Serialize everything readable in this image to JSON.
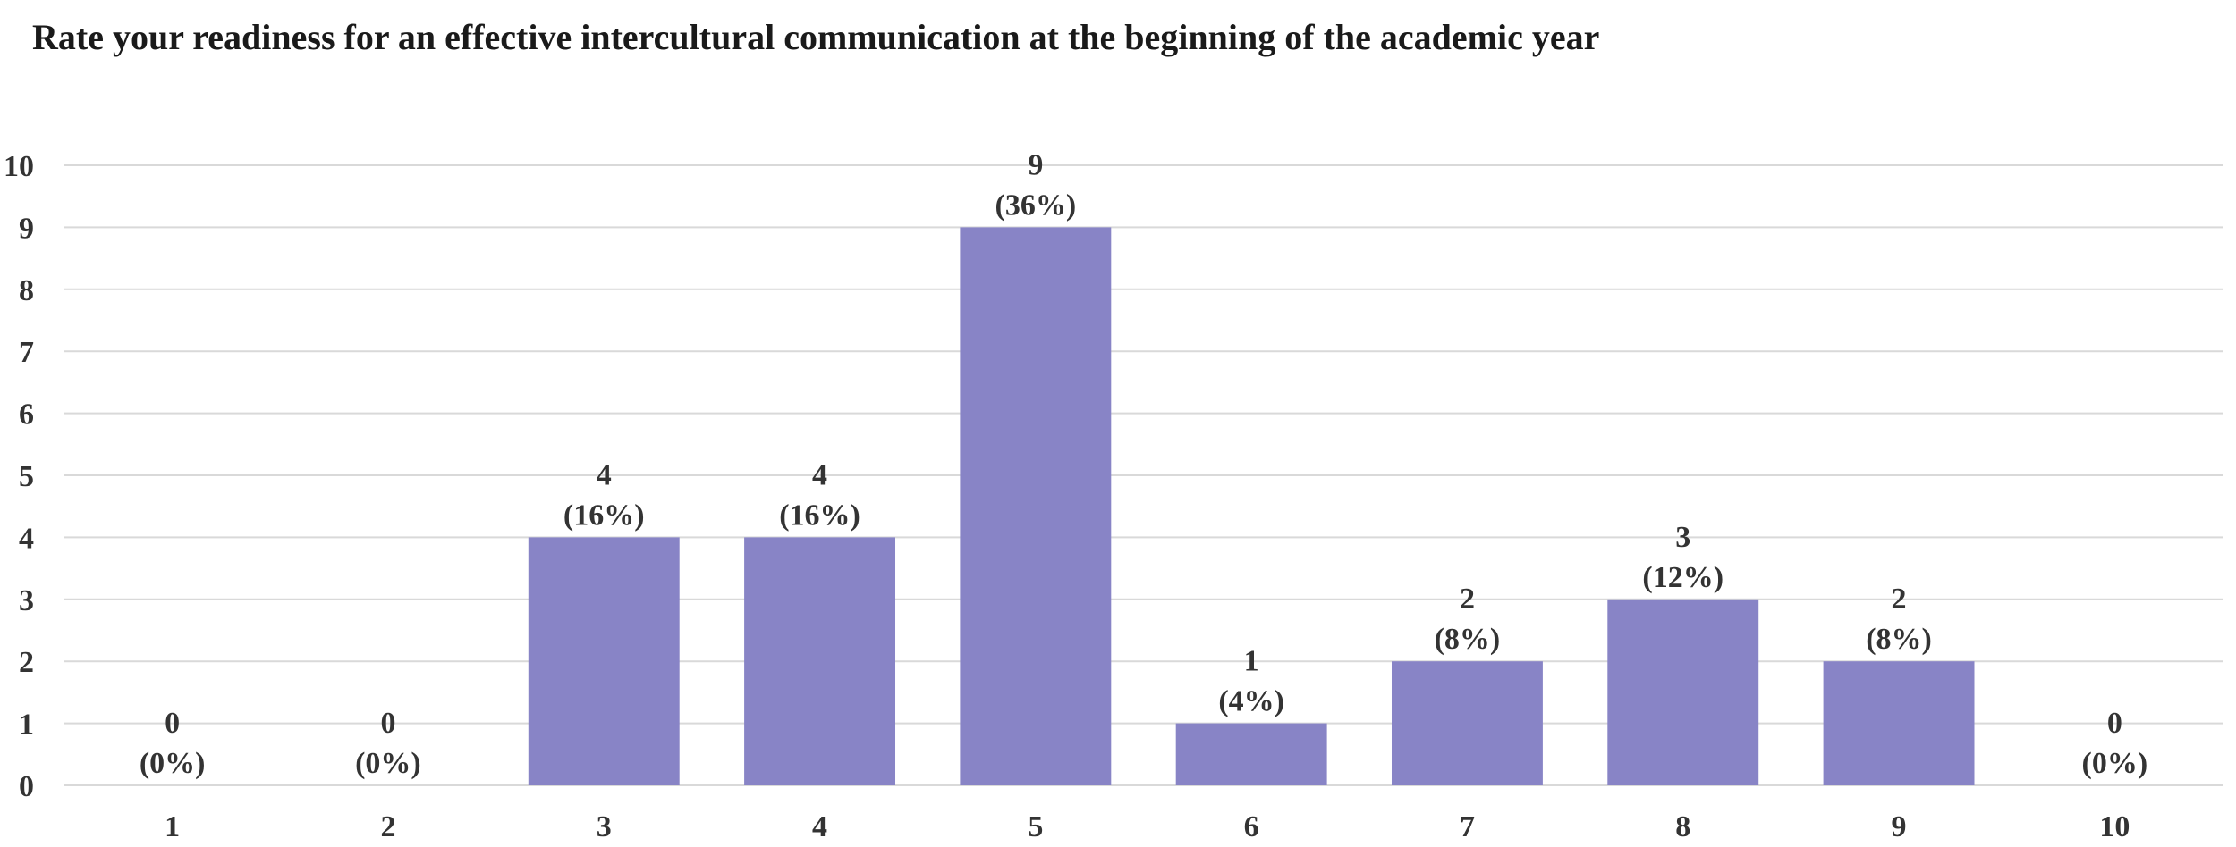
{
  "chart_data": {
    "type": "bar",
    "title": "Rate your readiness for an effective intercultural communication at the beginning of the academic year",
    "xlabel": "",
    "ylabel": "",
    "categories": [
      "1",
      "2",
      "3",
      "4",
      "5",
      "6",
      "7",
      "8",
      "9",
      "10"
    ],
    "values": [
      0,
      0,
      4,
      4,
      9,
      1,
      2,
      3,
      2,
      0
    ],
    "data_labels": [
      "(0%)",
      "(0%)",
      "(16%)",
      "(16%)",
      "(36%)",
      "(4%)",
      "(8%)",
      "(12%)",
      "(8%)",
      "(0%)"
    ],
    "ylim": [
      0,
      10
    ],
    "yticks": [
      0,
      1,
      2,
      3,
      4,
      5,
      6,
      7,
      8,
      9,
      10
    ],
    "grid": true,
    "legend": "none",
    "bar_color": "#8884c6",
    "grid_color": "#d9d9d9"
  }
}
